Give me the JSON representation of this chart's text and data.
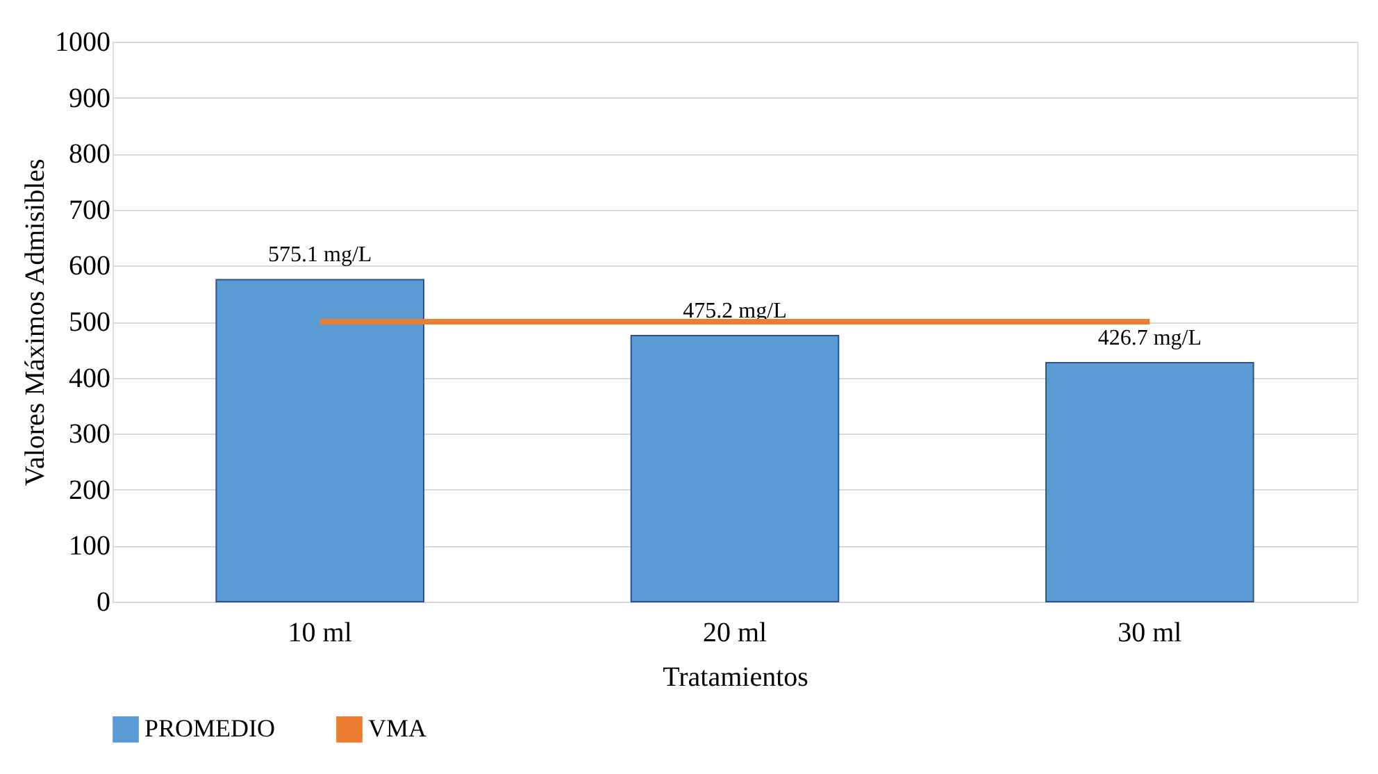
{
  "chart_data": {
    "type": "bar",
    "xlabel": "Tratamientos",
    "ylabel": "Valores Máximos Admisibles",
    "categories": [
      "10 ml",
      "20 ml",
      "30 ml"
    ],
    "series": [
      {
        "name": "PROMEDIO",
        "color": "#5b9bd5",
        "values": [
          575.1,
          475.2,
          426.7
        ],
        "value_labels": [
          "575.1 mg/L",
          "475.2 mg/L",
          "426.7 mg/L"
        ]
      },
      {
        "name": "VMA",
        "type": "line",
        "color": "#ed7d31",
        "values": [
          500,
          500,
          500
        ]
      }
    ],
    "ylim": [
      0,
      1000
    ],
    "yticks": [
      0,
      100,
      200,
      300,
      400,
      500,
      600,
      700,
      800,
      900,
      1000
    ],
    "grid": "y",
    "legend": "bottom",
    "marker": "none",
    "line_style": "solid"
  }
}
